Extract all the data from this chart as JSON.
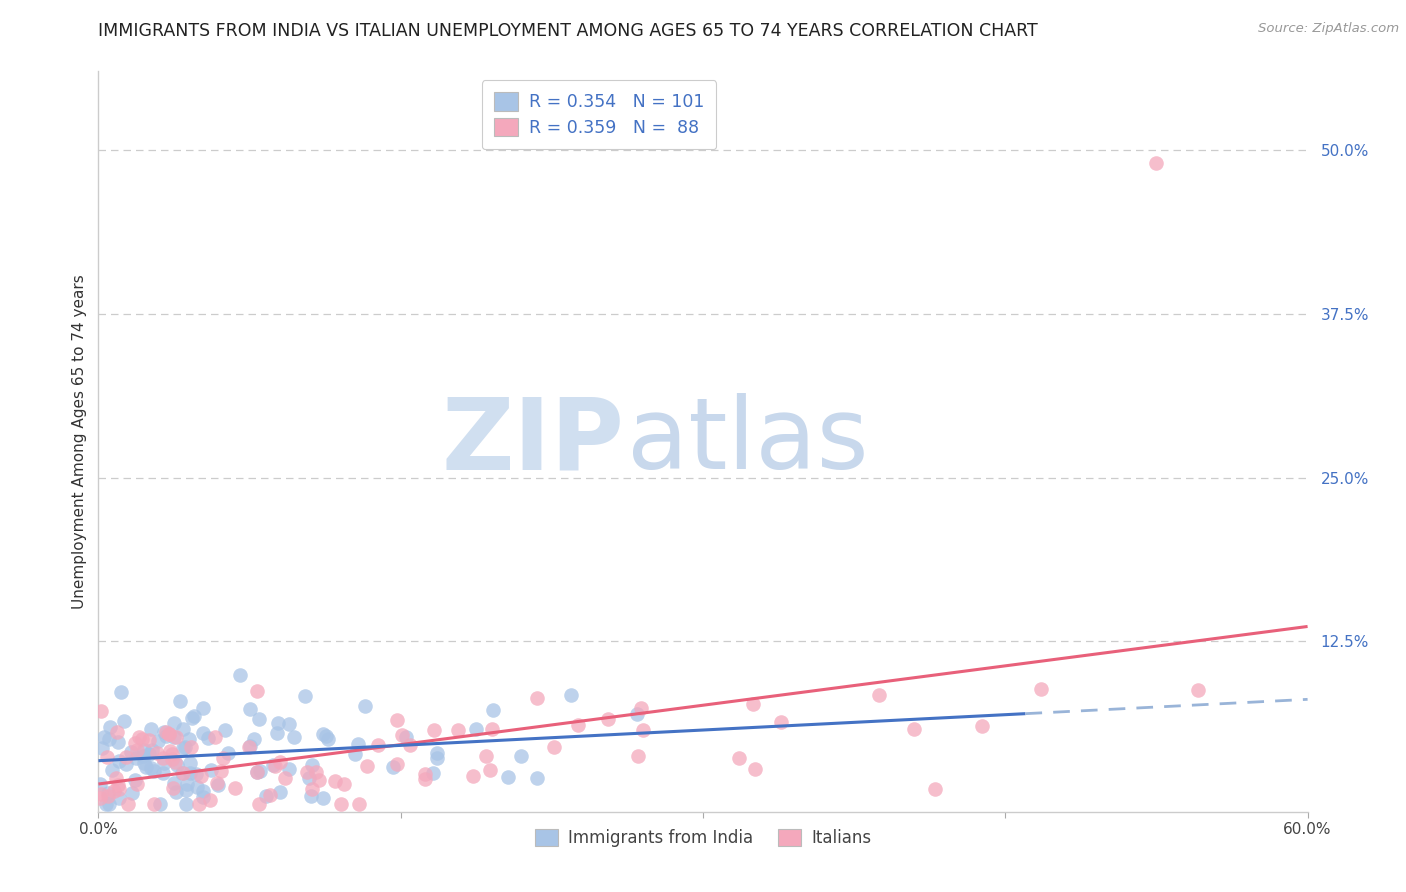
{
  "title": "IMMIGRANTS FROM INDIA VS ITALIAN UNEMPLOYMENT AMONG AGES 65 TO 74 YEARS CORRELATION CHART",
  "source": "Source: ZipAtlas.com",
  "ylabel": "Unemployment Among Ages 65 to 74 years",
  "legend_label1": "Immigrants from India",
  "legend_label2": "Italians",
  "r1": 0.354,
  "n1": 101,
  "r2": 0.359,
  "n2": 88,
  "color1": "#a8c4e6",
  "color2": "#f4a8bc",
  "line_color1": "#4472c4",
  "line_color2": "#e8607a",
  "dash_color": "#99b4d8",
  "xlim": [
    0.0,
    0.6
  ],
  "ylim": [
    -0.005,
    0.56
  ],
  "yticks": [
    0.0,
    0.125,
    0.25,
    0.375,
    0.5
  ],
  "ytick_labels": [
    "",
    "12.5%",
    "25.0%",
    "37.5%",
    "50.0%"
  ],
  "xticks": [
    0.0,
    0.15,
    0.3,
    0.45,
    0.6
  ],
  "xtick_labels": [
    "0.0%",
    "",
    "",
    "",
    "60.0%"
  ],
  "watermark_zip": "ZIP",
  "watermark_atlas": "atlas",
  "background_color": "#ffffff",
  "grid_color": "#cccccc",
  "title_fontsize": 12.5,
  "axis_label_fontsize": 11,
  "tick_fontsize": 11,
  "legend_text_color": "#4472c4",
  "seed1": 7,
  "seed2": 13
}
